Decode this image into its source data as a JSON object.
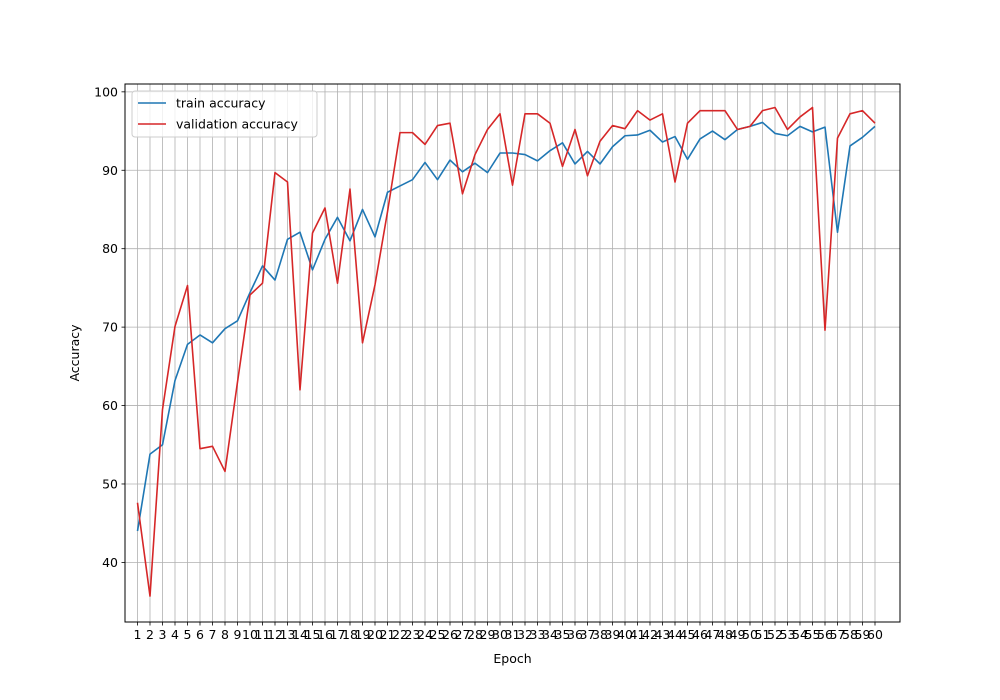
{
  "chart_data": {
    "type": "line",
    "title": "",
    "xlabel": "Epoch",
    "ylabel": "Accuracy",
    "xlim": [
      0.0,
      62.0
    ],
    "ylim": [
      32.4,
      101.0
    ],
    "yticks": [
      40,
      50,
      60,
      70,
      80,
      90,
      100
    ],
    "grid": true,
    "legend_position": "upper-left",
    "x": [
      1,
      2,
      3,
      4,
      5,
      6,
      7,
      8,
      9,
      10,
      11,
      12,
      13,
      14,
      15,
      16,
      17,
      18,
      19,
      20,
      21,
      22,
      23,
      24,
      25,
      26,
      27,
      28,
      29,
      30,
      31,
      32,
      33,
      34,
      35,
      36,
      37,
      38,
      39,
      40,
      41,
      42,
      43,
      44,
      45,
      46,
      47,
      48,
      49,
      50,
      51,
      52,
      53,
      54,
      55,
      56,
      57,
      58,
      59,
      60
    ],
    "series": [
      {
        "name": "train accuracy",
        "color": "#1f77b4",
        "values": [
          44.0,
          53.8,
          55.0,
          63.2,
          67.8,
          69.0,
          68.0,
          69.8,
          70.8,
          74.4,
          77.8,
          76.0,
          81.2,
          82.1,
          77.3,
          81.2,
          84.0,
          81.0,
          85.0,
          81.5,
          87.2,
          88.0,
          88.8,
          91.0,
          88.8,
          91.3,
          89.8,
          90.9,
          89.7,
          92.2,
          92.2,
          92.0,
          91.2,
          92.5,
          93.5,
          90.8,
          92.4,
          90.8,
          93.0,
          94.4,
          94.5,
          95.1,
          93.6,
          94.3,
          91.4,
          94.0,
          95.0,
          93.9,
          95.2,
          95.6,
          96.1,
          94.7,
          94.4,
          95.6,
          94.9,
          95.5,
          82.1,
          93.1,
          94.2,
          95.6
        ]
      },
      {
        "name": "validation accuracy",
        "color": "#d62728",
        "values": [
          47.6,
          35.7,
          59.5,
          70.1,
          75.3,
          54.5,
          54.8,
          51.6,
          63.0,
          74.1,
          75.6,
          89.7,
          88.5,
          62.0,
          82.0,
          85.2,
          75.6,
          87.6,
          68.0,
          75.4,
          84.7,
          94.8,
          94.8,
          93.3,
          95.7,
          96.0,
          87.0,
          92.0,
          95.2,
          97.2,
          88.1,
          97.2,
          97.2,
          96.0,
          90.5,
          95.2,
          89.3,
          93.7,
          95.7,
          95.3,
          97.6,
          96.4,
          97.2,
          88.5,
          96.0,
          97.6,
          97.6,
          97.6,
          95.2,
          95.6,
          97.6,
          98.0,
          95.2,
          96.8,
          98.0,
          69.6,
          94.1,
          97.2,
          97.6,
          96.0
        ]
      }
    ]
  }
}
